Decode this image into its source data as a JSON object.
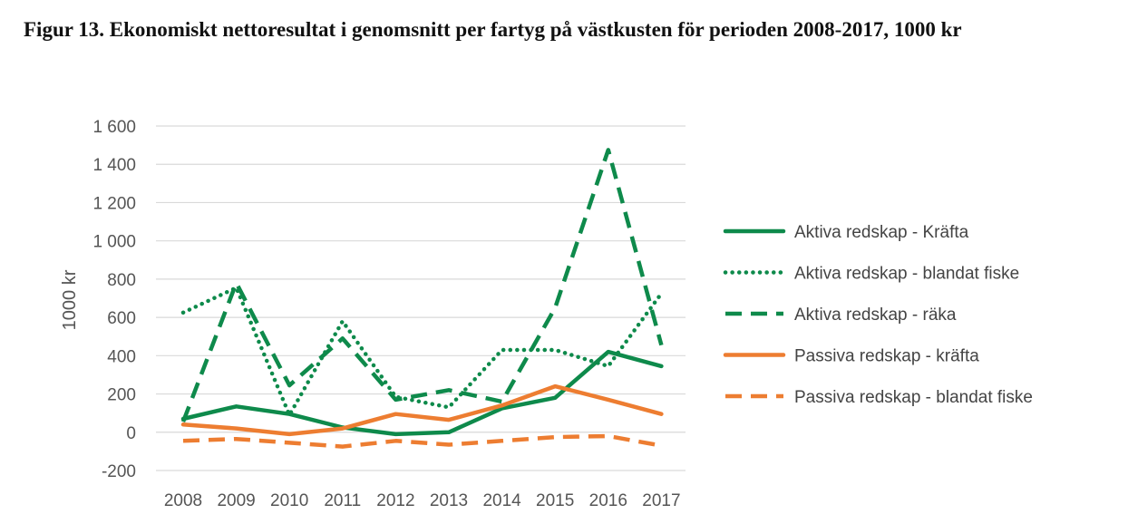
{
  "caption": "Figur 13. Ekonomiskt nettoresultat i genomsnitt per fartyg på västkusten för perioden 2008-2017, 1000 kr",
  "chart_data": {
    "type": "line",
    "title": "",
    "xlabel": "",
    "ylabel": "1000 kr",
    "x": [
      "2008",
      "2009",
      "2010",
      "2011",
      "2012",
      "2013",
      "2014",
      "2015",
      "2016",
      "2017"
    ],
    "ylim": [
      -200,
      1600
    ],
    "yticks": [
      -200,
      0,
      200,
      400,
      600,
      800,
      1000,
      1200,
      1400,
      1600
    ],
    "ytick_labels": [
      "-200",
      "0",
      "200",
      "400",
      "600",
      "800",
      "1 000",
      "1 200",
      "1 400",
      "1 600"
    ],
    "grid": "horizontal",
    "legend_position": "right",
    "series": [
      {
        "name": "Aktiva redskap - Kräfta",
        "color": "#0e8a4b",
        "style": "solid",
        "values": [
          70,
          135,
          95,
          25,
          -10,
          0,
          125,
          180,
          420,
          345
        ]
      },
      {
        "name": "Aktiva redskap - blandat fiske",
        "color": "#0e8a4b",
        "style": "dotted",
        "values": [
          625,
          755,
          90,
          580,
          185,
          130,
          430,
          430,
          345,
          725
        ]
      },
      {
        "name": "Aktiva redskap - räka",
        "color": "#0e8a4b",
        "style": "dashed",
        "values": [
          55,
          780,
          245,
          490,
          170,
          220,
          160,
          650,
          1475,
          455
        ]
      },
      {
        "name": "Passiva redskap - kräfta",
        "color": "#ed7d31",
        "style": "solid",
        "values": [
          40,
          20,
          -10,
          20,
          95,
          65,
          140,
          240,
          170,
          95
        ]
      },
      {
        "name": "Passiva redskap - blandat fiske",
        "color": "#ed7d31",
        "style": "dashed",
        "values": [
          -45,
          -35,
          -55,
          -75,
          -45,
          -65,
          -45,
          -25,
          -20,
          -70
        ]
      }
    ]
  }
}
